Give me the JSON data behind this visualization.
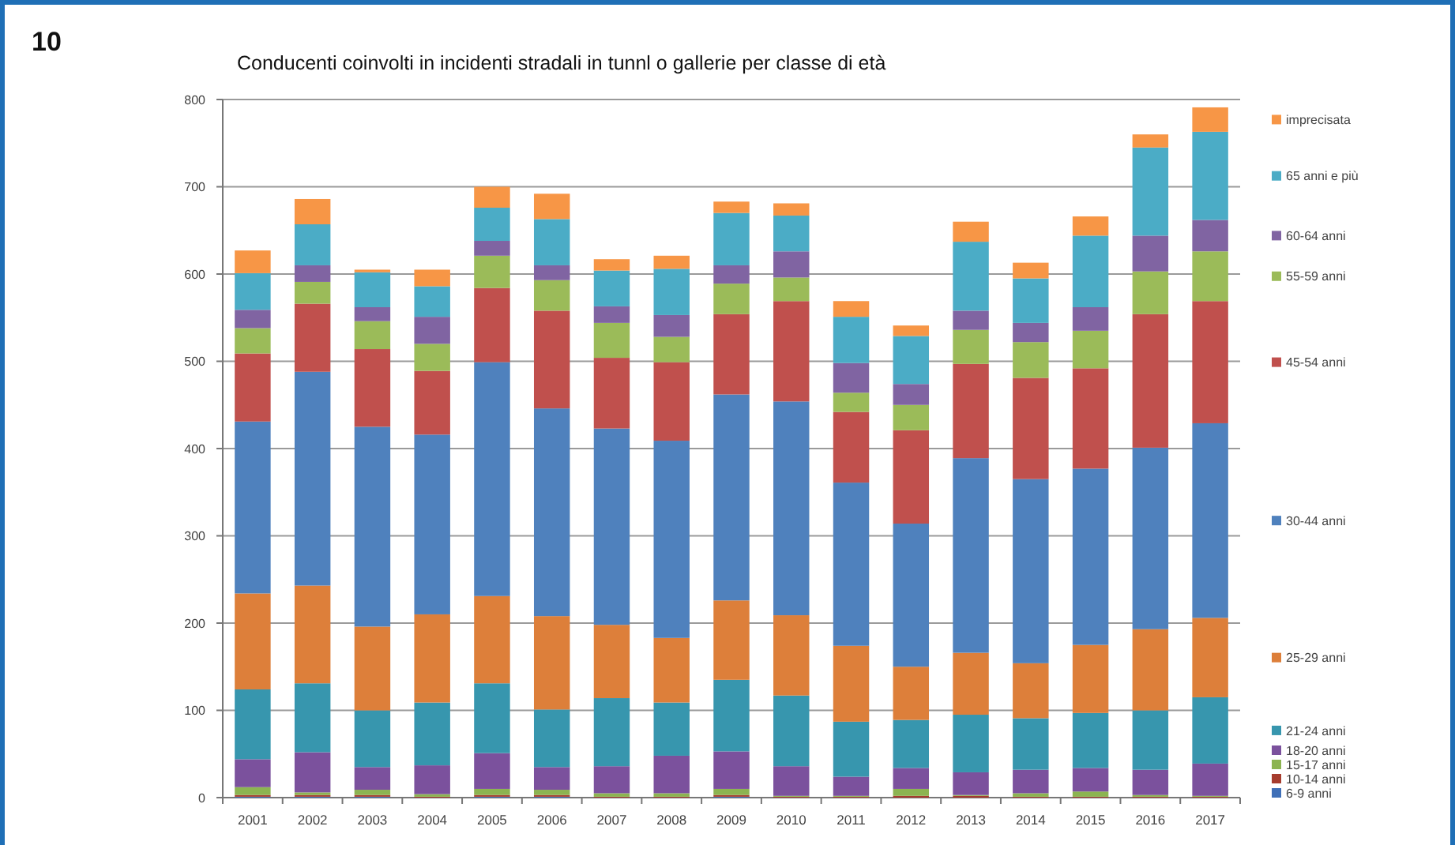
{
  "chart_data": {
    "type": "bar",
    "title": "Conducenti coinvolti in incidenti stradali in tunnl o gallerie per classe di età",
    "annotations": [
      "10"
    ],
    "categories": [
      "2001",
      "2002",
      "2003",
      "2004",
      "2005",
      "2006",
      "2007",
      "2008",
      "2009",
      "2010",
      "2011",
      "2012",
      "2013",
      "2014",
      "2015",
      "2016",
      "2017"
    ],
    "stacked": true,
    "ylim": [
      0,
      800
    ],
    "yticks": [
      0,
      100,
      200,
      300,
      400,
      500,
      600,
      700,
      800
    ],
    "grid": "y",
    "legend": "right",
    "series": [
      {
        "name": "6-9 anni",
        "color": "#3f6fb7",
        "values": [
          1,
          1,
          1,
          0,
          1,
          1,
          0,
          0,
          1,
          0,
          0,
          0,
          0,
          0,
          0,
          0,
          0
        ]
      },
      {
        "name": "10-14 anni",
        "color": "#a63c2e",
        "values": [
          2,
          2,
          2,
          1,
          2,
          2,
          1,
          1,
          2,
          1,
          1,
          2,
          2,
          1,
          1,
          1,
          1
        ]
      },
      {
        "name": "15-17 anni",
        "color": "#8cb451",
        "values": [
          9,
          3,
          6,
          3,
          7,
          6,
          4,
          4,
          7,
          1,
          1,
          8,
          1,
          4,
          6,
          2,
          1
        ]
      },
      {
        "name": "18-20 anni",
        "color": "#7b519d",
        "values": [
          32,
          46,
          26,
          33,
          41,
          26,
          31,
          43,
          43,
          34,
          22,
          24,
          26,
          27,
          27,
          29,
          37
        ]
      },
      {
        "name": "21-24 anni",
        "color": "#3796ae",
        "values": [
          80,
          79,
          65,
          72,
          80,
          66,
          78,
          61,
          82,
          81,
          63,
          55,
          66,
          59,
          63,
          68,
          76
        ]
      },
      {
        "name": "25-29 anni",
        "color": "#dd7f3a",
        "values": [
          110,
          112,
          96,
          101,
          100,
          107,
          84,
          74,
          91,
          92,
          87,
          61,
          71,
          63,
          78,
          93,
          91
        ]
      },
      {
        "name": "30-44 anni",
        "color": "#4f81bd",
        "values": [
          197,
          245,
          229,
          206,
          268,
          238,
          225,
          226,
          236,
          245,
          187,
          164,
          223,
          211,
          202,
          208,
          223
        ]
      },
      {
        "name": "45-54 anni",
        "color": "#c0504d",
        "values": [
          78,
          78,
          89,
          73,
          85,
          112,
          81,
          90,
          92,
          115,
          81,
          107,
          108,
          116,
          115,
          153,
          140
        ]
      },
      {
        "name": "55-59 anni",
        "color": "#9bbb59",
        "values": [
          29,
          25,
          32,
          31,
          37,
          35,
          40,
          29,
          35,
          27,
          22,
          29,
          39,
          41,
          43,
          49,
          57
        ]
      },
      {
        "name": "60-64 anni",
        "color": "#8064a2",
        "values": [
          21,
          19,
          16,
          31,
          17,
          17,
          19,
          25,
          21,
          30,
          34,
          24,
          22,
          22,
          27,
          41,
          36
        ]
      },
      {
        "name": "65 anni e più",
        "color": "#4bacc6",
        "values": [
          42,
          47,
          40,
          35,
          38,
          53,
          41,
          53,
          60,
          41,
          53,
          55,
          79,
          51,
          82,
          101,
          101
        ]
      },
      {
        "name": "imprecisata",
        "color": "#f79646",
        "values": [
          26,
          29,
          3,
          19,
          24,
          29,
          13,
          15,
          13,
          14,
          18,
          12,
          23,
          18,
          22,
          15,
          28
        ]
      }
    ]
  }
}
